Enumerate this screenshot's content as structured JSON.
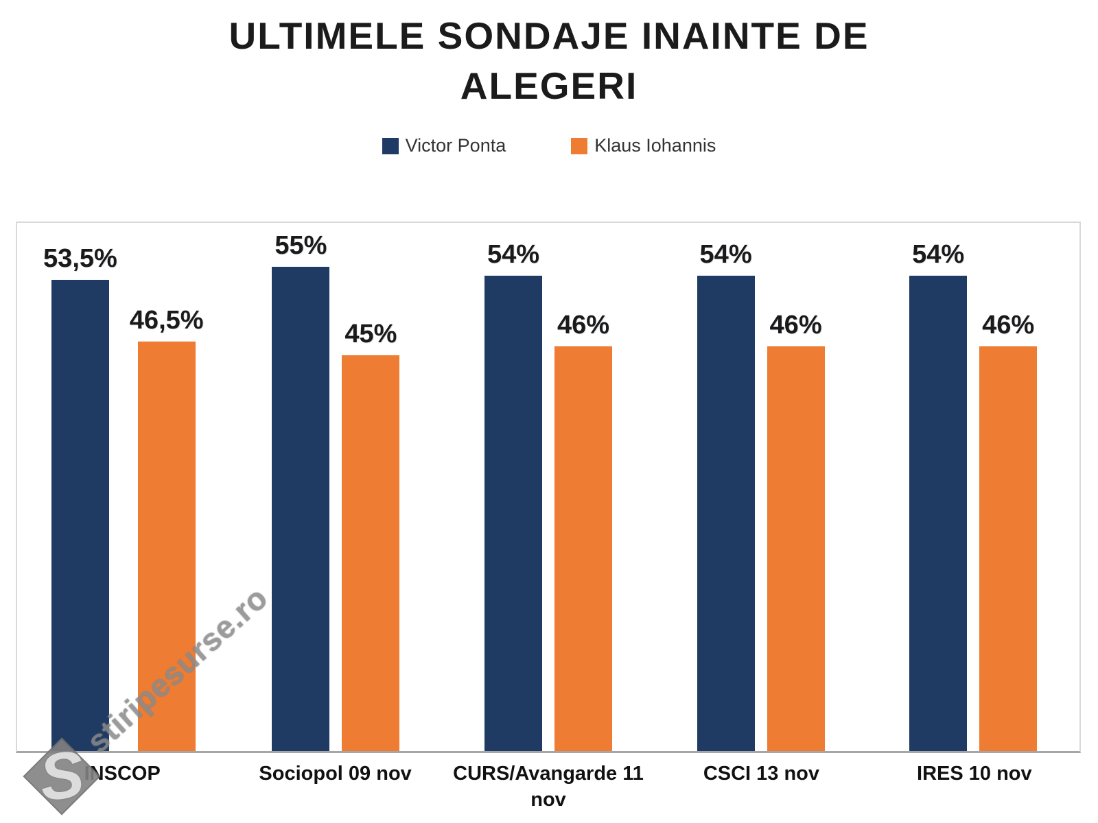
{
  "title": "ULTIMELE SONDAJE INAINTE DE ALEGERI",
  "watermark": {
    "text": "stiripesurse.ro",
    "logo_letter": "S"
  },
  "colors": {
    "ponta_navy": "#1f3a63",
    "iohannis_orange": "#ee7d33",
    "axis_line": "#a6a6a6",
    "plot_border": "#d9d9d9",
    "watermark_gray": "#8a8a8a"
  },
  "chart_data": {
    "type": "bar",
    "categories": [
      "INSCOP",
      "Sociopol 09 nov",
      "CURS/Avangarde 11 nov",
      "CSCI 13 nov",
      "IRES 10 nov"
    ],
    "series": [
      {
        "name": "Victor Ponta",
        "color": "#1f3a63",
        "values": [
          53.5,
          55,
          54,
          54,
          54
        ],
        "labels": [
          "53,5%",
          "55%",
          "54%",
          "54%",
          "54%"
        ]
      },
      {
        "name": "Klaus Iohannis",
        "color": "#ee7d33",
        "values": [
          46.5,
          45,
          46,
          46,
          46
        ],
        "labels": [
          "46,5%",
          "45%",
          "46%",
          "46%",
          "46%"
        ]
      }
    ],
    "ylim": [
      0,
      60
    ],
    "grid": false,
    "legend_position": "top-center",
    "value_labels_shown": true
  }
}
